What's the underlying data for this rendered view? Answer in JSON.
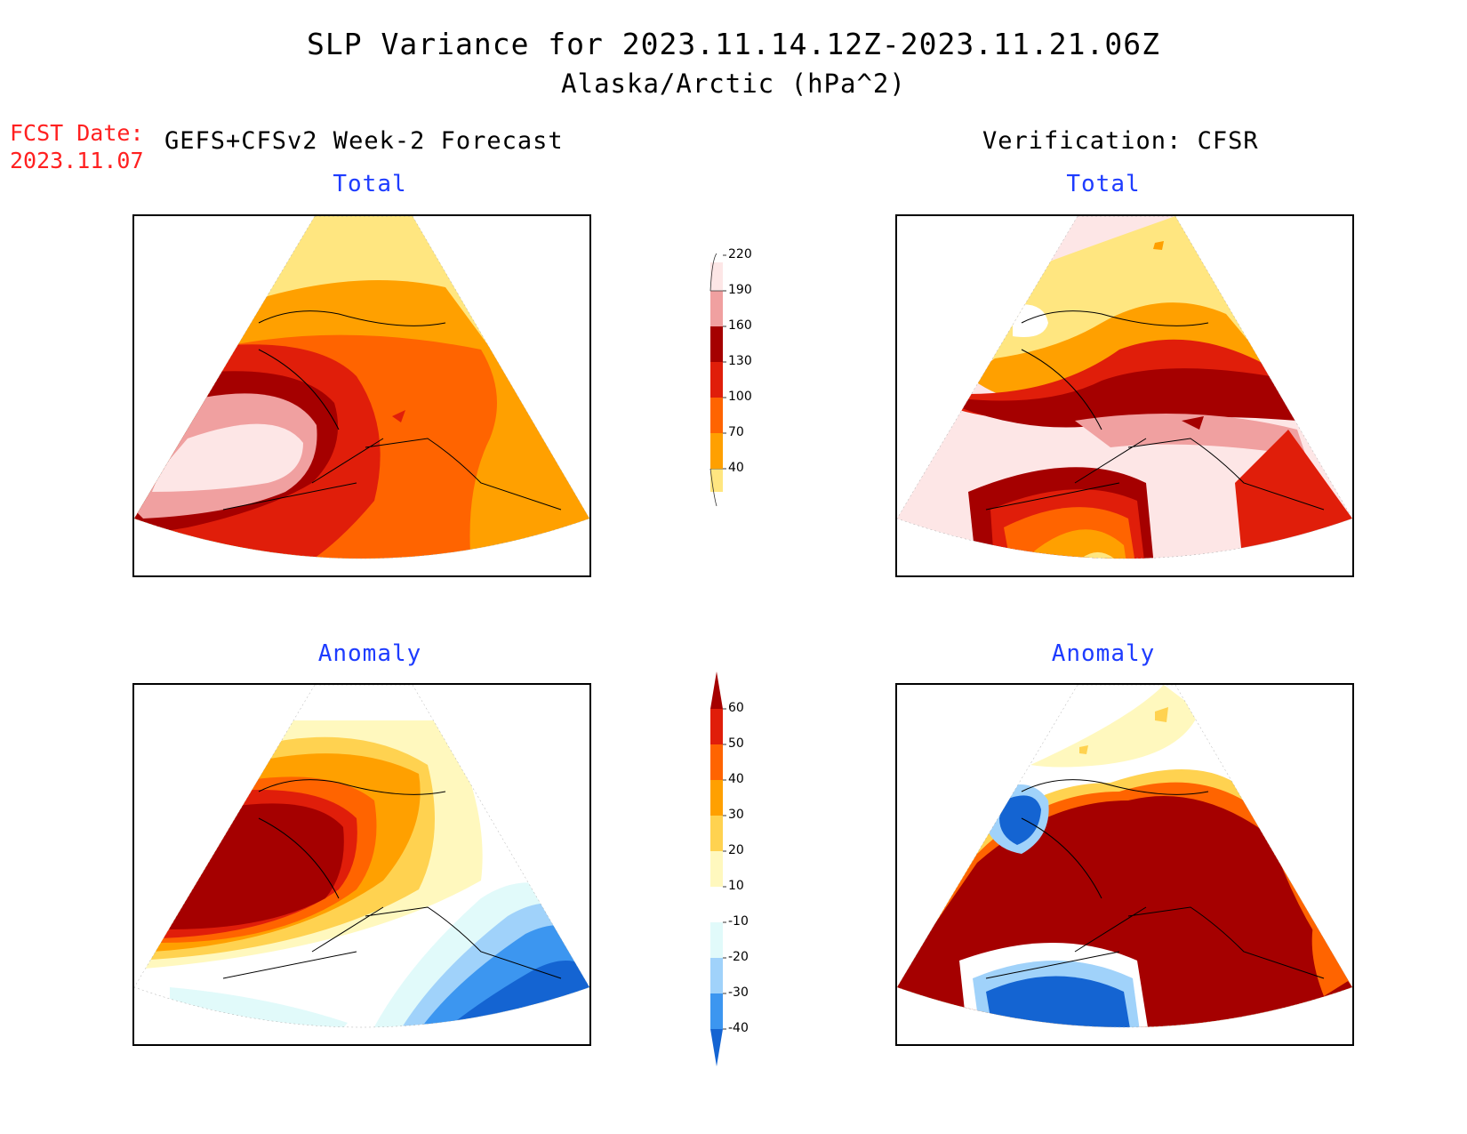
{
  "header": {
    "title": "SLP Variance for 2023.11.14.12Z-2023.11.21.06Z",
    "subtitle": "Alaska/Arctic (hPa^2)",
    "fcst_label": "FCST Date:",
    "fcst_date": "2023.11.07",
    "left_header": "GEFS+CFSv2 Week-2 Forecast",
    "right_header": "Verification: CFSR"
  },
  "chart_data": [
    {
      "type": "heatmap",
      "title": "Total",
      "source": "GEFS+CFSv2 Week-2 Forecast",
      "colorbar": "total",
      "regions_description_levels": [
        70,
        100,
        130,
        160,
        190,
        220
      ]
    },
    {
      "type": "heatmap",
      "title": "Total",
      "source": "Verification: CFSR",
      "colorbar": "total",
      "regions_description_levels": [
        40,
        70,
        100,
        130,
        160,
        190,
        220
      ]
    },
    {
      "type": "heatmap",
      "title": "Anomaly",
      "source": "GEFS+CFSv2 Week-2 Forecast",
      "colorbar": "anomaly",
      "regions_description_levels": [
        -40,
        -30,
        -20,
        -10,
        10,
        20,
        30,
        40,
        50,
        60
      ]
    },
    {
      "type": "heatmap",
      "title": "Anomaly",
      "source": "Verification: CFSR",
      "colorbar": "anomaly",
      "regions_description_levels": [
        -40,
        -30,
        -20,
        -10,
        10,
        20,
        30,
        40,
        50,
        60
      ]
    }
  ],
  "colorbars": {
    "total": {
      "levels": [
        "40",
        "70",
        "100",
        "130",
        "160",
        "190",
        "220"
      ],
      "colors": [
        "#ffe680",
        "#ffa000",
        "#ff6400",
        "#e01e0a",
        "#a50000",
        "#f0a0a0",
        "#fde6e6"
      ]
    },
    "anomaly": {
      "levels": [
        "-40",
        "-30",
        "-20",
        "-10",
        "10",
        "20",
        "30",
        "40",
        "50",
        "60"
      ],
      "colors": [
        "#1464d2",
        "#3c96f0",
        "#a0d2fa",
        "#e1fafa",
        "#ffffff",
        "#fff8be",
        "#ffd250",
        "#ffa000",
        "#ff6400",
        "#e01e0a",
        "#a50000"
      ]
    }
  }
}
